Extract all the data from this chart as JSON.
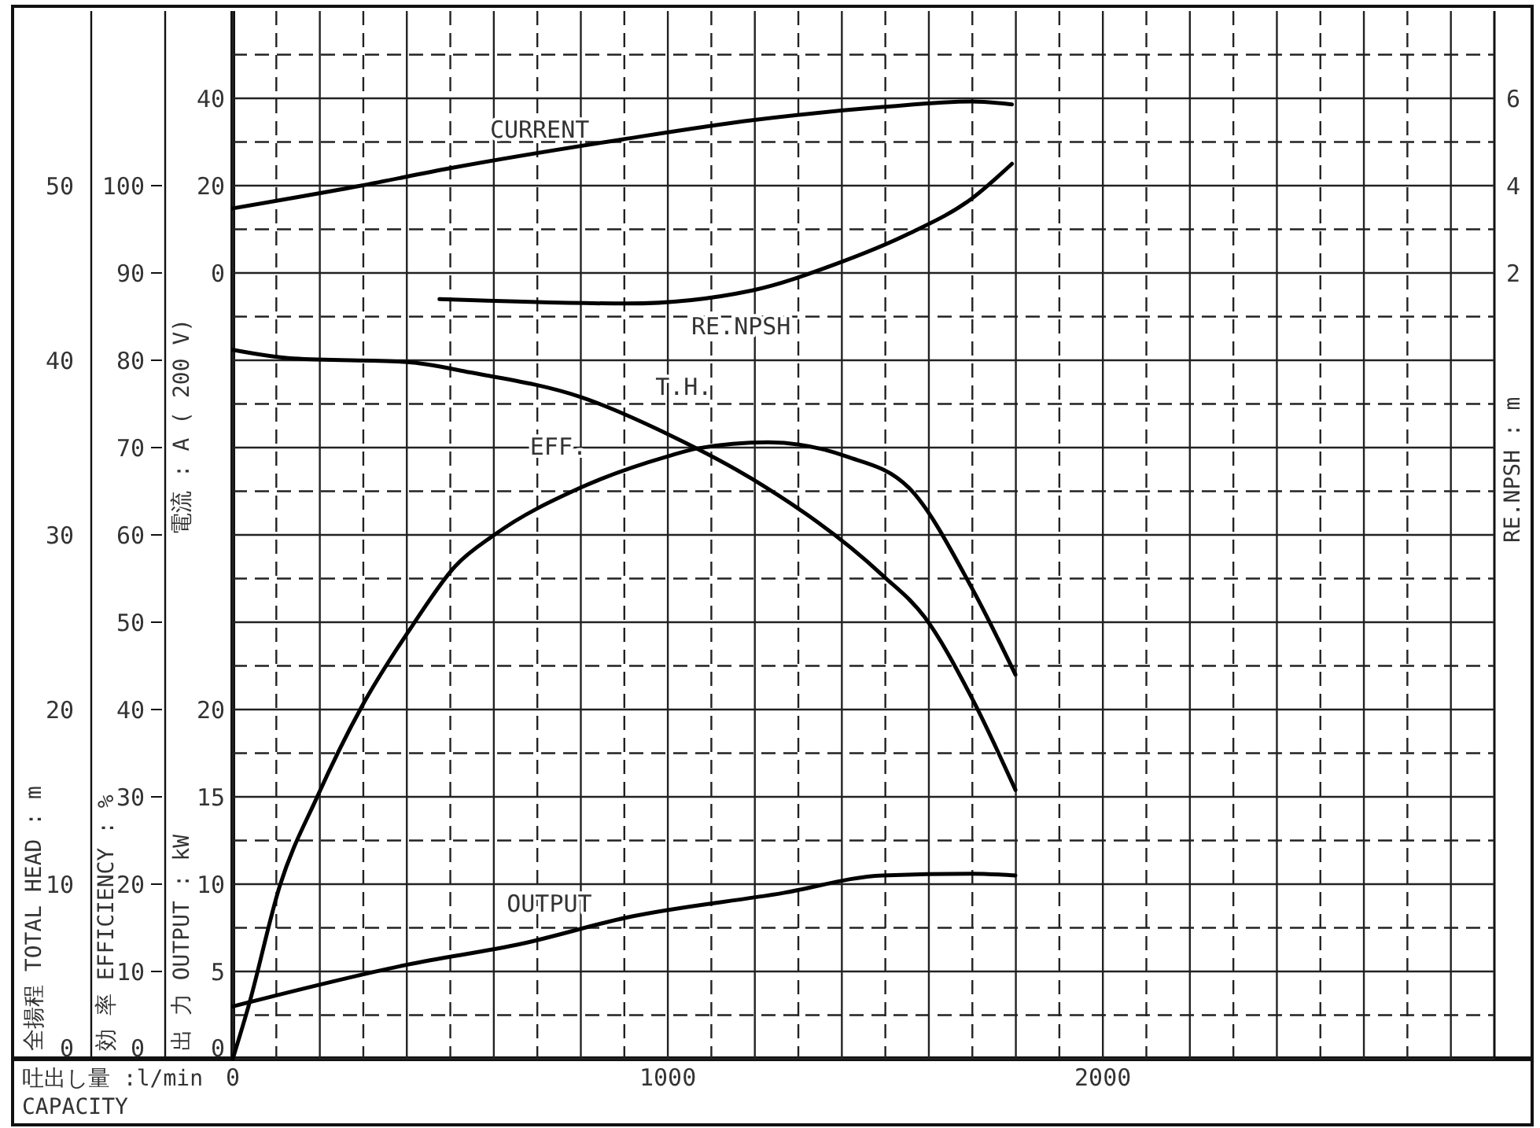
{
  "chart_data": [
    {
      "type": "line",
      "xlabel": "吐出し量 :l/min",
      "annotations": [
        "CAPACITY"
      ],
      "ylabel": "全揚程 TOTAL HEAD : m",
      "y2label": "効 率 EFFICIENCY : %",
      "y3label": "電流 : A ( 200 V)",
      "xlim": [
        0,
        2900
      ],
      "xticks": [
        {
          "value": 0,
          "label": "0"
        },
        {
          "value": 100,
          "label": null
        },
        {
          "value": 200,
          "label": null
        },
        {
          "value": 300,
          "label": null
        },
        {
          "value": 400,
          "label": null
        },
        {
          "value": 500,
          "label": null
        },
        {
          "value": 600,
          "label": null
        },
        {
          "value": 700,
          "label": null
        },
        {
          "value": 800,
          "label": null
        },
        {
          "value": 900,
          "label": null
        },
        {
          "value": 1000,
          "label": "1000"
        },
        {
          "value": 1100,
          "label": null
        },
        {
          "value": 1200,
          "label": null
        },
        {
          "value": 1300,
          "label": null
        },
        {
          "value": 1400,
          "label": null
        },
        {
          "value": 1500,
          "label": null
        },
        {
          "value": 1600,
          "label": null
        },
        {
          "value": 1700,
          "label": null
        },
        {
          "value": 1800,
          "label": null
        },
        {
          "value": 1900,
          "label": null
        },
        {
          "value": 2000,
          "label": "2000"
        },
        {
          "value": 2100,
          "label": null
        },
        {
          "value": 2200,
          "label": null
        },
        {
          "value": 2300,
          "label": null
        },
        {
          "value": 2400,
          "label": null
        },
        {
          "value": 2500,
          "label": null
        },
        {
          "value": 2600,
          "label": null
        },
        {
          "value": 2700,
          "label": null
        },
        {
          "value": 2800,
          "label": null
        }
      ],
      "ylim": [
        0,
        60
      ],
      "yticks": [
        0,
        10,
        20,
        30,
        40,
        50
      ],
      "y2lim": [
        0,
        120
      ],
      "y2ticks": [
        0,
        {
          "value": 5,
          "label": null
        },
        10,
        {
          "value": 15,
          "label": null
        },
        20,
        {
          "value": 25,
          "label": null
        },
        30,
        {
          "value": 35,
          "label": null
        },
        40,
        {
          "value": 45,
          "label": null
        },
        50,
        {
          "value": 55,
          "label": null
        },
        60,
        {
          "value": 65,
          "label": null
        },
        70,
        {
          "value": 75,
          "label": null
        },
        80,
        {
          "value": 85,
          "label": null
        },
        90,
        {
          "value": 95,
          "label": null
        },
        100,
        {
          "value": 105,
          "label": null
        },
        {
          "value": 110,
          "label": null
        },
        {
          "value": 115,
          "label": null
        }
      ],
      "y3lim": [
        -180,
        60
      ],
      "y3ticks": [
        0,
        20,
        40
      ],
      "grid": true,
      "line_style": "solid",
      "series": [
        {
          "name": "CURRENT",
          "color": "#000000",
          "axis": "y3",
          "x": [
            0,
            295,
            500,
            896,
            1195,
            1493,
            1698,
            1791
          ],
          "values": [
            14.8,
            20,
            24,
            30.6,
            35,
            38,
            39.3,
            38.6
          ]
        },
        {
          "name": "T.H.",
          "color": "#000000",
          "x": [
            0,
            140,
            400,
            547,
            799,
            1014,
            1194,
            1493,
            1590,
            1698,
            1799
          ],
          "values": [
            40.6,
            40.1,
            39.9,
            39.3,
            37.9,
            35.6,
            33.2,
            27.7,
            25.3,
            20.7,
            15.4
          ]
        },
        {
          "name": "EFF.",
          "color": "#000000",
          "axis": "y2",
          "x": [
            0,
            36,
            108,
            194,
            295,
            414,
            511,
            601,
            799,
            1000,
            1068,
            1230,
            1410,
            1554,
            1698,
            1799
          ],
          "values": [
            0,
            6,
            19.8,
            30,
            40.2,
            49.7,
            56.4,
            60,
            65.4,
            69,
            69.9,
            70.6,
            69,
            65.4,
            54,
            44
          ]
        }
      ]
    },
    {
      "type": "line",
      "ylabel": "出 力 OUTPUT : kW",
      "y2label": "RE.NPSH : m",
      "tick_labels": "y",
      "xlim": [
        0,
        2900
      ],
      "ylim": [
        0,
        60
      ],
      "yticks": [
        0,
        5,
        10,
        15,
        20
      ],
      "y2lim": [
        -16,
        8
      ],
      "y2ticks": [
        2,
        4,
        6
      ],
      "line_style": "solid",
      "series": [
        {
          "name": "OUTPUT",
          "color": "#000000",
          "x": [
            0,
            403,
            666,
            907,
            1266,
            1493,
            1698,
            1799
          ],
          "values": [
            3,
            5.4,
            6.6,
            8.1,
            9.5,
            10.5,
            10.6,
            10.5
          ]
        },
        {
          "name": "RE.NPSH",
          "color": "#000000",
          "axis": "y2",
          "x": [
            475,
            907,
            1194,
            1385,
            1554,
            1698,
            1791
          ],
          "values": [
            1.4,
            1.3,
            1.6,
            2.2,
            2.9,
            3.7,
            4.5
          ]
        }
      ]
    }
  ]
}
